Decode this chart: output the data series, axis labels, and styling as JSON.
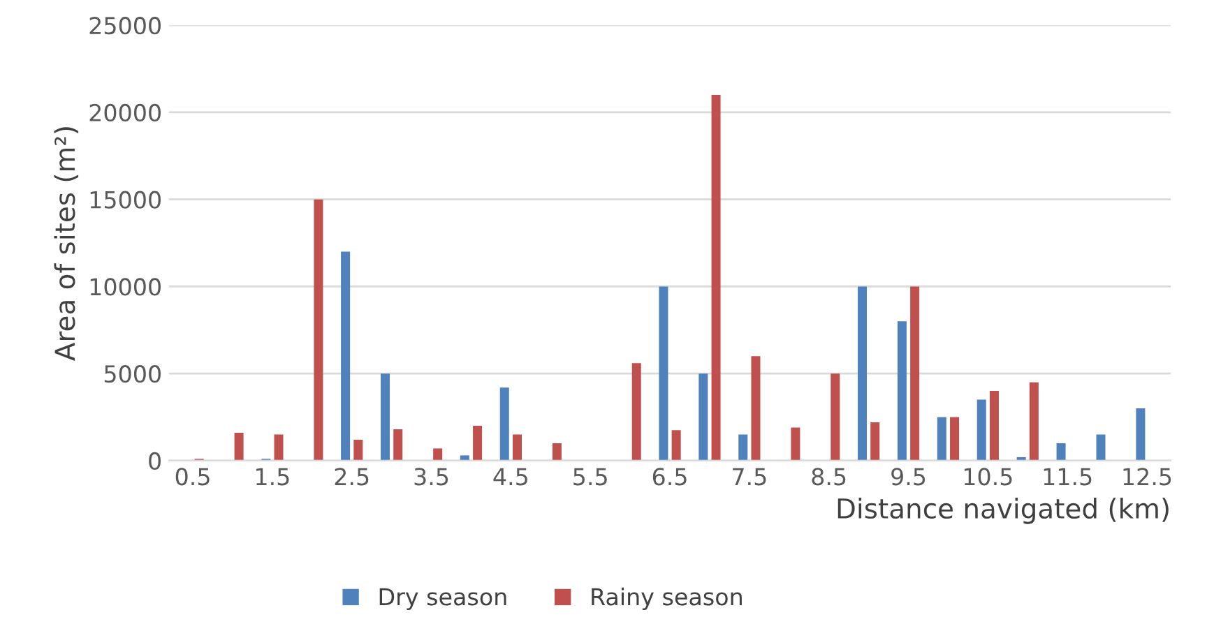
{
  "chart_data": {
    "type": "bar",
    "xlabel": "Distance navigated (km)",
    "ylabel": "Area of sites (m²)",
    "categories": [
      "0.5",
      null,
      "1.5",
      null,
      "2.5",
      null,
      "3.5",
      null,
      "4.5",
      null,
      "5.5",
      null,
      "6.5",
      null,
      "7.5",
      null,
      "8.5",
      null,
      "9.5",
      null,
      "10.5",
      null,
      "11.5",
      null,
      "12.5"
    ],
    "series": [
      {
        "name": "Dry season",
        "color": "#4f81bd",
        "values": [
          0,
          0,
          100,
          0,
          12000,
          5000,
          0,
          300,
          4200,
          0,
          0,
          0,
          10000,
          5000,
          1500,
          0,
          0,
          10000,
          8000,
          2500,
          3500,
          200,
          1000,
          1500,
          3000
        ]
      },
      {
        "name": "Rainy season",
        "color": "#c0504d",
        "values": [
          100,
          1600,
          1500,
          15000,
          1200,
          1800,
          700,
          2000,
          1500,
          1000,
          0,
          5600,
          1750,
          21000,
          6000,
          1900,
          5000,
          2200,
          10000,
          2500,
          4000,
          4500,
          0,
          0,
          0
        ]
      }
    ],
    "ylim": [
      0,
      25000
    ],
    "yticks": [
      0,
      5000,
      10000,
      15000,
      20000,
      25000
    ],
    "grid": "y",
    "legend": "bottom"
  }
}
